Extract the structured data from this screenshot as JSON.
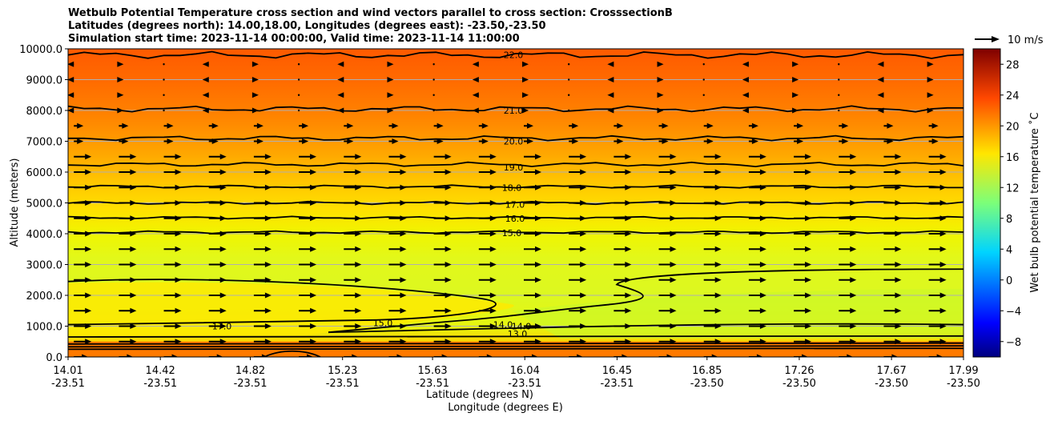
{
  "titles": [
    "Wetbulb Potential Temperature cross section and wind vectors parallel to cross section: CrosssectionB",
    "Latitudes (degrees north): 14.00,18.00, Longitudes (degrees east): -23.50,-23.50",
    "Simulation start time: 2023-11-14 00:00:00, Valid time: 2023-11-14 11:00:00"
  ],
  "chart_data": {
    "type": "heatmap",
    "title": "Wetbulb Potential Temperature cross section and wind vectors parallel to cross section: CrosssectionB",
    "xlabel_1": "Latitude (degrees N)",
    "xlabel_2": "Longitude (degrees E)",
    "ylabel": "Altitude (meters)",
    "ylim": [
      0,
      10000
    ],
    "y_ticks": [
      "0.0",
      "1000.0",
      "2000.0",
      "3000.0",
      "4000.0",
      "5000.0",
      "6000.0",
      "7000.0",
      "8000.0",
      "9000.0",
      "10000.0"
    ],
    "y_tick_values": [
      0,
      1000,
      2000,
      3000,
      4000,
      5000,
      6000,
      7000,
      8000,
      9000,
      10000
    ],
    "x_ticks": [
      {
        "lat": "14.01",
        "lon": "-23.51"
      },
      {
        "lat": "14.42",
        "lon": "-23.51"
      },
      {
        "lat": "14.82",
        "lon": "-23.51"
      },
      {
        "lat": "15.23",
        "lon": "-23.51"
      },
      {
        "lat": "15.63",
        "lon": "-23.51"
      },
      {
        "lat": "16.04",
        "lon": "-23.51"
      },
      {
        "lat": "16.45",
        "lon": "-23.51"
      },
      {
        "lat": "16.85",
        "lon": "-23.50"
      },
      {
        "lat": "17.26",
        "lon": "-23.50"
      },
      {
        "lat": "17.67",
        "lon": "-23.50"
      },
      {
        "lat": "17.99",
        "lon": "-23.50"
      }
    ],
    "x_tick_values": [
      14.01,
      14.42,
      14.82,
      15.23,
      15.63,
      16.04,
      16.45,
      16.85,
      17.26,
      17.67,
      17.99
    ],
    "xlim": [
      14.01,
      17.99
    ],
    "grid": "horizontal",
    "colorbar": {
      "label": "Wet bulb potential temperature $^\\circ$C",
      "label_text": "Wet bulb potential temperature ˚C",
      "range": [
        -10,
        30
      ],
      "ticks": [
        "−8",
        "−4",
        "0",
        "4",
        "8",
        "12",
        "16",
        "20",
        "24",
        "28"
      ],
      "tick_values": [
        -8,
        -4,
        0,
        4,
        8,
        12,
        16,
        20,
        24,
        28
      ]
    },
    "contours": [
      {
        "label": "22.0",
        "value": 22,
        "alt": 9800
      },
      {
        "label": "21.0",
        "value": 21,
        "alt": 8000
      },
      {
        "label": "20.0",
        "value": 20,
        "alt": 7000
      },
      {
        "label": "19.0",
        "value": 19,
        "alt": 6150
      },
      {
        "label": "18.0",
        "value": 18,
        "alt": 5500
      },
      {
        "label": "17.0",
        "value": 17,
        "alt": 4950
      },
      {
        "label": "16.0",
        "value": 16,
        "alt": 4500
      },
      {
        "label": "15.0",
        "value": 15,
        "alt": 4020
      },
      {
        "label": "15.0",
        "value": 15,
        "alt": 1100
      },
      {
        "label": "14.0",
        "value": 14,
        "alt": 1050
      },
      {
        "label": "14.0",
        "value": 14,
        "alt": 1000
      },
      {
        "label": "13.0",
        "value": 13,
        "alt": 750
      },
      {
        "label": "17.0",
        "value": 17,
        "alt": 1000
      }
    ],
    "wind_reference": {
      "label": "10 m/s",
      "speed": 10
    },
    "wind_vectors": "rightward (northward) winds ~8-10 m/s below 7000 m; weak and reversed above 8000 m"
  }
}
